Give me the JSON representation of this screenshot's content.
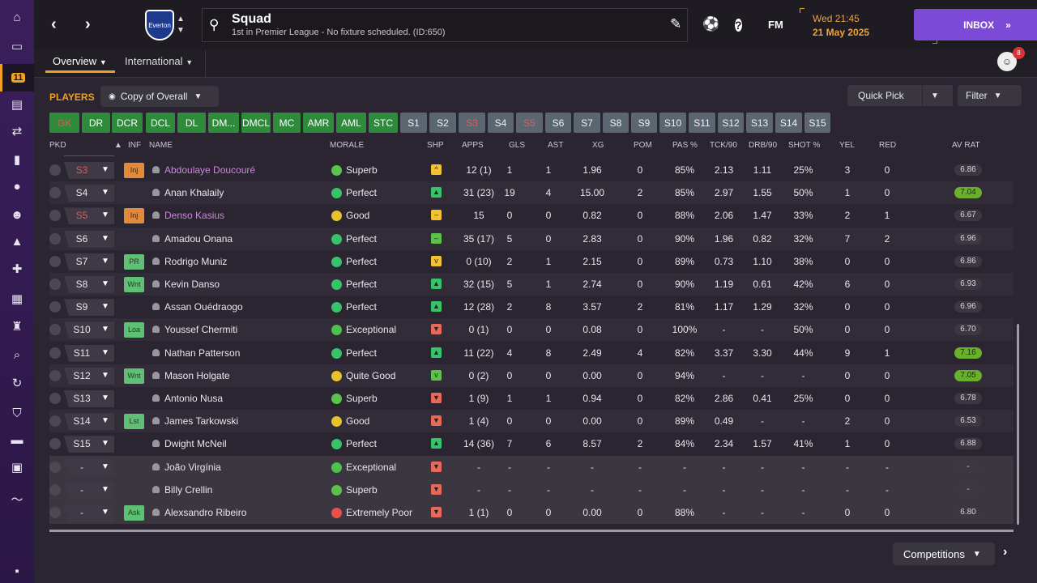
{
  "sidebar": {
    "items": [
      {
        "icon": "home-icon",
        "glyph": "⌂"
      },
      {
        "icon": "inbox-icon",
        "glyph": "▭"
      },
      {
        "icon": "squad-icon",
        "glyph": "11",
        "active": true
      },
      {
        "icon": "tactics-icon",
        "glyph": "▤"
      },
      {
        "icon": "transfers-icon",
        "glyph": "⇄"
      },
      {
        "icon": "data-hub-icon",
        "glyph": "▮"
      },
      {
        "icon": "scouting-icon",
        "glyph": "●"
      },
      {
        "icon": "staff-icon",
        "glyph": "☻"
      },
      {
        "icon": "training-icon",
        "glyph": "▲"
      },
      {
        "icon": "medical-icon",
        "glyph": "✚"
      },
      {
        "icon": "schedule-icon",
        "glyph": "▦"
      },
      {
        "icon": "competitions-icon",
        "glyph": "♜"
      },
      {
        "icon": "search-icon",
        "glyph": "⌕"
      },
      {
        "icon": "refresh-icon",
        "glyph": "↻"
      },
      {
        "icon": "club-info-icon",
        "glyph": "⛉"
      },
      {
        "icon": "finances-icon",
        "glyph": "▬"
      },
      {
        "icon": "tickets-icon",
        "glyph": "▣"
      },
      {
        "icon": "trend-icon",
        "glyph": "〜"
      },
      {
        "icon": "flag-icon",
        "glyph": "▪"
      }
    ]
  },
  "header": {
    "title": "Squad",
    "subtitle": "1st in Premier League - No fixture scheduled. (ID:650)",
    "club_badge": "Everton",
    "day_time": "Wed 21:45",
    "date": "21 May 2025",
    "fm_label": "FM",
    "inbox_label": "INBOX"
  },
  "tabs": {
    "overview": "Overview",
    "international": "International",
    "notification_count": "8"
  },
  "toolbar": {
    "players_label": "PLAYERS",
    "view_select": "Copy of Overall",
    "quick_pick": "Quick Pick",
    "filter": "Filter",
    "competitions": "Competitions"
  },
  "positions": [
    {
      "label": "GK",
      "style": "green",
      "red": true
    },
    {
      "label": "DR",
      "style": "green"
    },
    {
      "label": "DCR",
      "style": "green"
    },
    {
      "label": "DCL",
      "style": "green"
    },
    {
      "label": "DL",
      "style": "green"
    },
    {
      "label": "DM...",
      "style": "green"
    },
    {
      "label": "DMCL",
      "style": "green"
    },
    {
      "label": "MC",
      "style": "green"
    },
    {
      "label": "AMR",
      "style": "green"
    },
    {
      "label": "AML",
      "style": "green"
    },
    {
      "label": "STC",
      "style": "green"
    },
    {
      "label": "S1",
      "style": "grey"
    },
    {
      "label": "S2",
      "style": "grey"
    },
    {
      "label": "S3",
      "style": "grey",
      "red": true
    },
    {
      "label": "S4",
      "style": "grey"
    },
    {
      "label": "S5",
      "style": "grey",
      "red": true
    },
    {
      "label": "S6",
      "style": "grey"
    },
    {
      "label": "S7",
      "style": "grey"
    },
    {
      "label": "S8",
      "style": "grey"
    },
    {
      "label": "S9",
      "style": "grey"
    },
    {
      "label": "S10",
      "style": "grey"
    },
    {
      "label": "S11",
      "style": "grey"
    },
    {
      "label": "S12",
      "style": "grey"
    },
    {
      "label": "S13",
      "style": "grey"
    },
    {
      "label": "S14",
      "style": "grey"
    },
    {
      "label": "S15",
      "style": "grey"
    }
  ],
  "columns": {
    "pkd": "PKD",
    "inf": "INF",
    "name": "NAME",
    "morale": "MORALE",
    "shp": "SHP",
    "apps": "APPS",
    "gls": "GLS",
    "ast": "AST",
    "xg": "XG",
    "pom": "POM",
    "pas": "PAS %",
    "tck": "TCK/90",
    "drb": "DRB/90",
    "shot": "SHOT %",
    "yel": "YEL",
    "red": "RED",
    "avrat": "AV RAT"
  },
  "players": [
    {
      "pkd": "S3",
      "pkd_red": true,
      "inf": "Inj",
      "inf_type": "inj",
      "name": "Abdoulaye Doucouré",
      "injured": true,
      "morale": "Superb",
      "morale_color": "#5cc24a",
      "shp": "^",
      "shp_color": "#f2c230",
      "apps": "12 (1)",
      "gls": "1",
      "ast": "1",
      "xg": "1.96",
      "pom": "0",
      "pas": "85%",
      "tck": "2.13",
      "drb": "1.11",
      "shot": "25%",
      "yel": "3",
      "red": "0",
      "rating": "6.86",
      "rating_high": false
    },
    {
      "pkd": "S4",
      "inf": "",
      "name": "Anan Khalaily",
      "morale": "Perfect",
      "morale_color": "#36c46a",
      "shp": "▲",
      "shp_color": "#36c46a",
      "apps": "31 (23)",
      "gls": "19",
      "ast": "4",
      "xg": "15.00",
      "pom": "2",
      "pas": "85%",
      "tck": "2.97",
      "drb": "1.55",
      "shot": "50%",
      "yel": "1",
      "red": "0",
      "rating": "7.04",
      "rating_high": true
    },
    {
      "pkd": "S5",
      "pkd_red": true,
      "inf": "Inj",
      "inf_type": "inj",
      "name": "Denso Kasius",
      "injured": true,
      "morale": "Good",
      "morale_color": "#e8c22a",
      "shp": "–",
      "shp_color": "#f2c230",
      "apps": "15",
      "gls": "0",
      "ast": "0",
      "xg": "0.82",
      "pom": "0",
      "pas": "88%",
      "tck": "2.06",
      "drb": "1.47",
      "shot": "33%",
      "yel": "2",
      "red": "1",
      "rating": "6.67",
      "rating_high": false
    },
    {
      "pkd": "S6",
      "inf": "",
      "name": "Amadou Onana",
      "morale": "Perfect",
      "morale_color": "#36c46a",
      "shp": "–",
      "shp_color": "#5cc24a",
      "apps": "35 (17)",
      "gls": "5",
      "ast": "0",
      "xg": "2.83",
      "pom": "0",
      "pas": "90%",
      "tck": "1.96",
      "drb": "0.82",
      "shot": "32%",
      "yel": "7",
      "red": "2",
      "rating": "6.96",
      "rating_high": false
    },
    {
      "pkd": "S7",
      "inf": "PR",
      "inf_type": "green",
      "name": "Rodrigo Muniz",
      "morale": "Perfect",
      "morale_color": "#36c46a",
      "shp": "v",
      "shp_color": "#f2c230",
      "apps": "0 (10)",
      "gls": "2",
      "ast": "1",
      "xg": "2.15",
      "pom": "0",
      "pas": "89%",
      "tck": "0.73",
      "drb": "1.10",
      "shot": "38%",
      "yel": "0",
      "red": "0",
      "rating": "6.86",
      "rating_high": false
    },
    {
      "pkd": "S8",
      "inf": "Wnt",
      "inf_type": "green",
      "name": "Kevin Danso",
      "morale": "Perfect",
      "morale_color": "#36c46a",
      "shp": "▲",
      "shp_color": "#36c46a",
      "apps": "32 (15)",
      "gls": "5",
      "ast": "1",
      "xg": "2.74",
      "pom": "0",
      "pas": "90%",
      "tck": "1.19",
      "drb": "0.61",
      "shot": "42%",
      "yel": "6",
      "red": "0",
      "rating": "6.93",
      "rating_high": false
    },
    {
      "pkd": "S9",
      "inf": "",
      "name": "Assan Ouédraogo",
      "morale": "Perfect",
      "morale_color": "#36c46a",
      "shp": "▲",
      "shp_color": "#36c46a",
      "apps": "12 (28)",
      "gls": "2",
      "ast": "8",
      "xg": "3.57",
      "pom": "2",
      "pas": "81%",
      "tck": "1.17",
      "drb": "1.29",
      "shot": "32%",
      "yel": "0",
      "red": "0",
      "rating": "6.96",
      "rating_high": false
    },
    {
      "pkd": "S10",
      "inf": "Loa",
      "inf_type": "green",
      "name": "Youssef Chermiti",
      "morale": "Exceptional",
      "morale_color": "#4cc24a",
      "shp": "▼",
      "shp_color": "#e8685a",
      "apps": "0 (1)",
      "gls": "0",
      "ast": "0",
      "xg": "0.08",
      "pom": "0",
      "pas": "100%",
      "tck": "-",
      "drb": "-",
      "shot": "50%",
      "yel": "0",
      "red": "0",
      "rating": "6.70",
      "rating_high": false
    },
    {
      "pkd": "S11",
      "inf": "",
      "name": "Nathan Patterson",
      "morale": "Perfect",
      "morale_color": "#36c46a",
      "shp": "▲",
      "shp_color": "#36c46a",
      "apps": "11 (22)",
      "gls": "4",
      "ast": "8",
      "xg": "2.49",
      "pom": "4",
      "pas": "82%",
      "tck": "3.37",
      "drb": "3.30",
      "shot": "44%",
      "yel": "9",
      "red": "1",
      "rating": "7.16",
      "rating_high": true
    },
    {
      "pkd": "S12",
      "inf": "Wnt",
      "inf_type": "green",
      "name": "Mason Holgate",
      "morale": "Quite Good",
      "morale_color": "#e8c22a",
      "shp": "v",
      "shp_color": "#5cc24a",
      "apps": "0 (2)",
      "gls": "0",
      "ast": "0",
      "xg": "0.00",
      "pom": "0",
      "pas": "94%",
      "tck": "-",
      "drb": "-",
      "shot": "-",
      "yel": "0",
      "red": "0",
      "rating": "7.05",
      "rating_high": true
    },
    {
      "pkd": "S13",
      "inf": "",
      "name": "Antonio Nusa",
      "morale": "Superb",
      "morale_color": "#5cc24a",
      "shp": "▼",
      "shp_color": "#e8685a",
      "apps": "1 (9)",
      "gls": "1",
      "ast": "1",
      "xg": "0.94",
      "pom": "0",
      "pas": "82%",
      "tck": "2.86",
      "drb": "0.41",
      "shot": "25%",
      "yel": "0",
      "red": "0",
      "rating": "6.78",
      "rating_high": false
    },
    {
      "pkd": "S14",
      "inf": "Lst",
      "inf_type": "green",
      "name": "James Tarkowski",
      "morale": "Good",
      "morale_color": "#e8c22a",
      "shp": "▼",
      "shp_color": "#e8685a",
      "apps": "1 (4)",
      "gls": "0",
      "ast": "0",
      "xg": "0.00",
      "pom": "0",
      "pas": "89%",
      "tck": "0.49",
      "drb": "-",
      "shot": "-",
      "yel": "2",
      "red": "0",
      "rating": "6.53",
      "rating_high": false
    },
    {
      "pkd": "S15",
      "inf": "",
      "name": "Dwight McNeil",
      "morale": "Perfect",
      "morale_color": "#36c46a",
      "shp": "▲",
      "shp_color": "#36c46a",
      "apps": "14 (36)",
      "gls": "7",
      "ast": "6",
      "xg": "8.57",
      "pom": "2",
      "pas": "84%",
      "tck": "2.34",
      "drb": "1.57",
      "shot": "41%",
      "yel": "1",
      "red": "0",
      "rating": "6.88",
      "rating_high": false
    },
    {
      "pkd": "-",
      "inf": "",
      "name": "João Virgínia",
      "dark": true,
      "morale": "Exceptional",
      "morale_color": "#4cc24a",
      "shp": "▼",
      "shp_color": "#e8685a",
      "apps": "-",
      "gls": "-",
      "ast": "-",
      "xg": "-",
      "pom": "-",
      "pas": "-",
      "tck": "-",
      "drb": "-",
      "shot": "-",
      "yel": "-",
      "red": "-",
      "rating": "-",
      "rating_high": false
    },
    {
      "pkd": "-",
      "inf": "",
      "name": "Billy Crellin",
      "dark": true,
      "morale": "Superb",
      "morale_color": "#5cc24a",
      "shp": "▼",
      "shp_color": "#e8685a",
      "apps": "-",
      "gls": "-",
      "ast": "-",
      "xg": "-",
      "pom": "-",
      "pas": "-",
      "tck": "-",
      "drb": "-",
      "shot": "-",
      "yel": "-",
      "red": "-",
      "rating": "-",
      "rating_high": false
    },
    {
      "pkd": "-",
      "inf": "Ask",
      "inf_type": "green",
      "name": "Alexsandro Ribeiro",
      "dark": true,
      "morale": "Extremely Poor",
      "morale_color": "#e8504a",
      "shp": "▼",
      "shp_color": "#e8685a",
      "apps": "1 (1)",
      "gls": "0",
      "ast": "0",
      "xg": "0.00",
      "pom": "0",
      "pas": "88%",
      "tck": "-",
      "drb": "-",
      "shot": "-",
      "yel": "0",
      "red": "0",
      "rating": "6.80",
      "rating_high": false
    }
  ]
}
